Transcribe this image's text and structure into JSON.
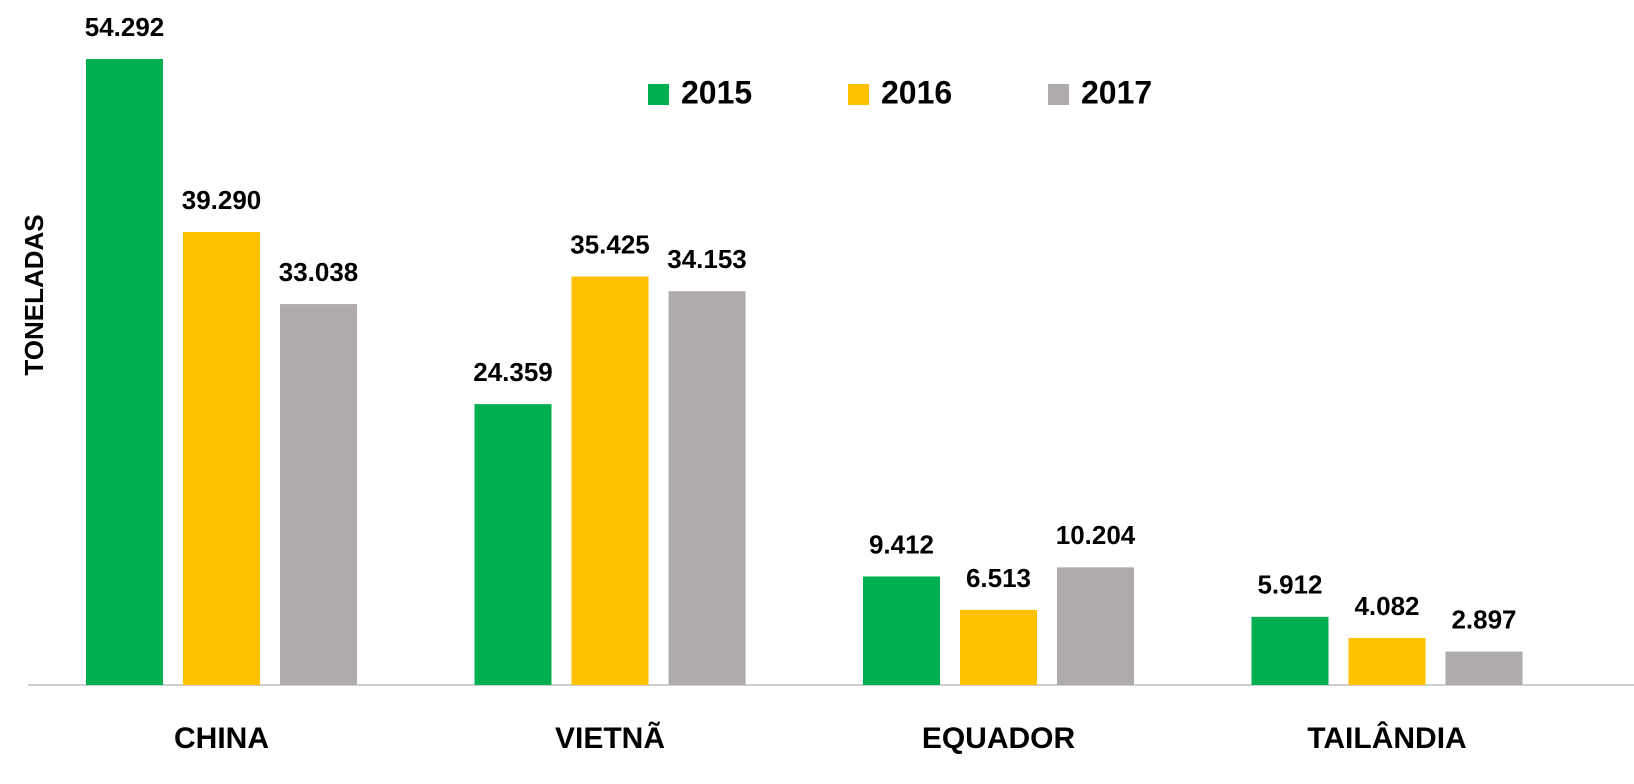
{
  "chart_data": {
    "type": "bar",
    "y_label": "TONELADAS",
    "categories": [
      "CHINA",
      "VIETNÃ",
      "EQUADOR",
      "TAILÂNDIA"
    ],
    "series": [
      {
        "name": "2015",
        "color": "#00b050",
        "values": [
          54292,
          24359,
          9412,
          5912
        ],
        "value_labels": [
          "54.292",
          "24.359",
          "9.412",
          "5.912"
        ]
      },
      {
        "name": "2016",
        "color": "#ffc000",
        "values": [
          39290,
          35425,
          6513,
          4082
        ],
        "value_labels": [
          "39.290",
          "35.425",
          "6.513",
          "4.082"
        ]
      },
      {
        "name": "2017",
        "color": "#afabab",
        "values": [
          33038,
          34153,
          10204,
          2897
        ],
        "value_labels": [
          "33.038",
          "34.153",
          "10.204",
          "2.897"
        ]
      }
    ]
  }
}
